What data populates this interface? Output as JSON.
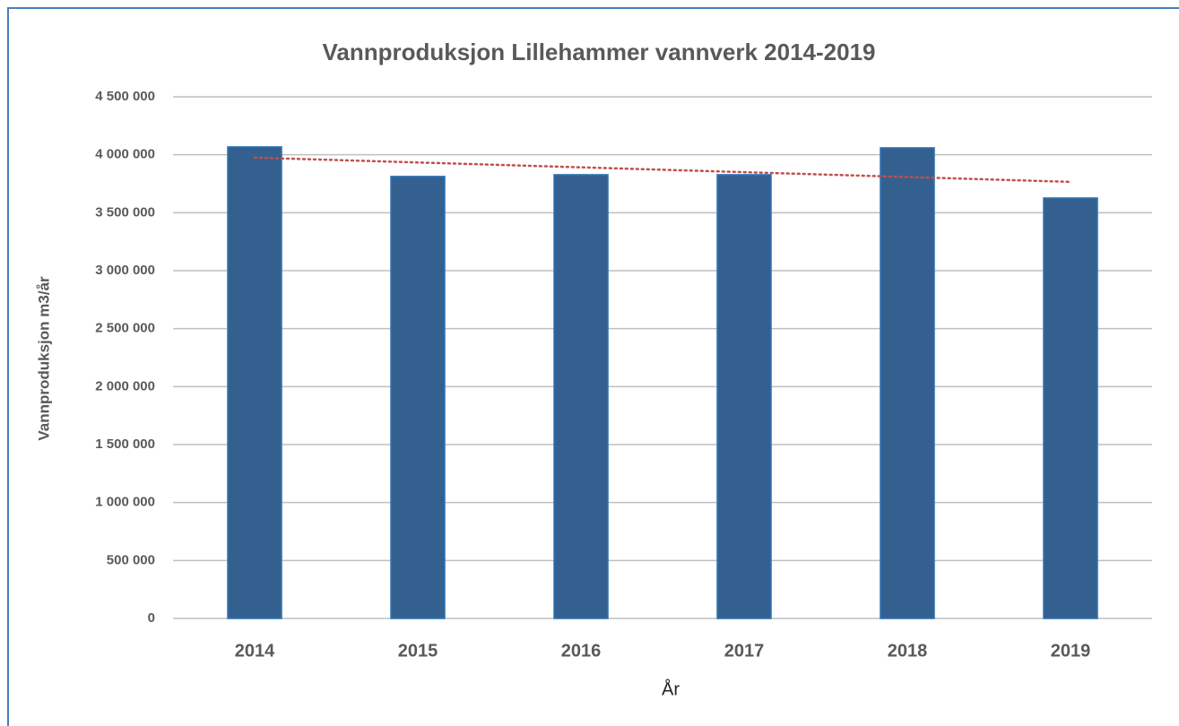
{
  "chart_data": {
    "type": "bar",
    "title": "Vannproduksjon Lillehammer vannverk 2014-2019",
    "x_label": "År",
    "y_label": "Vannproduksjon  m3/år",
    "categories": [
      "2014",
      "2015",
      "2016",
      "2017",
      "2018",
      "2019"
    ],
    "values": [
      4068000,
      3813000,
      3828000,
      3828000,
      4060000,
      3627000
    ],
    "color": "#34608f",
    "edge_color": "#2e75b6",
    "trendline": "linear",
    "trendline_color": "#c0504d",
    "ylim": [
      0,
      4500000
    ],
    "yticks": [
      0,
      {
        "value": 500000,
        "label": "500 000"
      },
      {
        "value": 1000000,
        "label": "1 000 000"
      },
      {
        "value": 1500000,
        "label": "1 500 000"
      },
      {
        "value": 2000000,
        "label": "2 000 000"
      },
      {
        "value": 2500000,
        "label": "2 500 000"
      },
      {
        "value": 3000000,
        "label": "3 000 000"
      },
      {
        "value": 3500000,
        "label": "3 500 000"
      },
      {
        "value": 4000000,
        "label": "4 000 000"
      },
      {
        "value": 4500000,
        "label": "4 500 000"
      }
    ],
    "grid": true
  }
}
